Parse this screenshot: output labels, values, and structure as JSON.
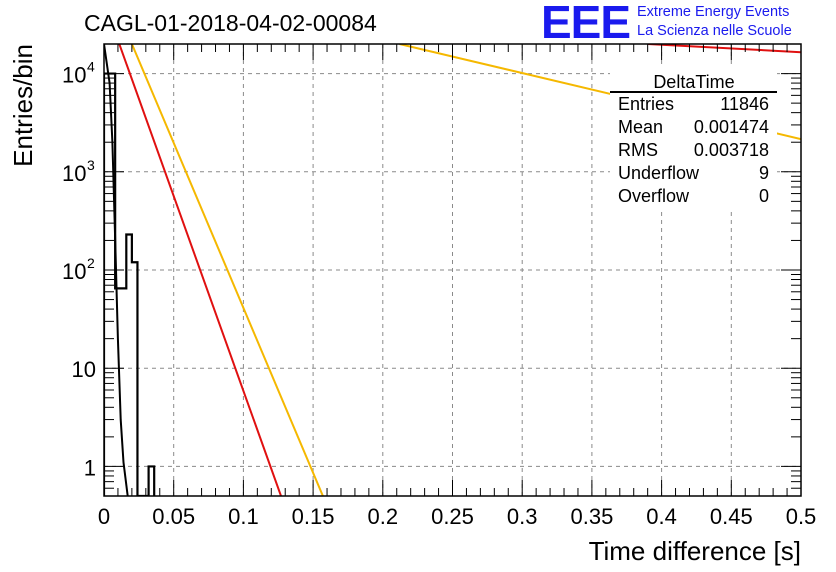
{
  "title": "CAGL-01-2018-04-02-00084",
  "logo": {
    "mark": "EEE",
    "line1": "Extreme Energy Events",
    "line2": "La Scienza nelle Scuole"
  },
  "chart_data": {
    "type": "histogram",
    "xlabel": "Time difference [s]",
    "ylabel": "Entries/bin",
    "xlim": [
      0,
      0.5
    ],
    "ylim": [
      0.5,
      20000
    ],
    "yscale": "log",
    "grid": true,
    "x_ticks": [
      {
        "v": 0,
        "label": "0"
      },
      {
        "v": 0.05,
        "label": "0.05"
      },
      {
        "v": 0.1,
        "label": "0.1"
      },
      {
        "v": 0.15,
        "label": "0.15"
      },
      {
        "v": 0.2,
        "label": "0.2"
      },
      {
        "v": 0.25,
        "label": "0.25"
      },
      {
        "v": 0.3,
        "label": "0.3"
      },
      {
        "v": 0.35,
        "label": "0.35"
      },
      {
        "v": 0.4,
        "label": "0.4"
      },
      {
        "v": 0.45,
        "label": "0.45"
      },
      {
        "v": 0.5,
        "label": "0.5"
      }
    ],
    "y_ticks": [
      {
        "v": 1,
        "base": "1",
        "exp": ""
      },
      {
        "v": 10,
        "base": "10",
        "exp": ""
      },
      {
        "v": 100,
        "base": "10",
        "exp": "2"
      },
      {
        "v": 1000,
        "base": "10",
        "exp": "3"
      },
      {
        "v": 10000,
        "base": "10",
        "exp": "4"
      }
    ],
    "histogram": {
      "bin_width": 0.004,
      "bins": [
        {
          "x0": 0.0,
          "y": 10000
        },
        {
          "x0": 0.004,
          "y": 10000
        },
        {
          "x0": 0.008,
          "y": 65
        },
        {
          "x0": 0.012,
          "y": 65
        },
        {
          "x0": 0.016,
          "y": 230
        },
        {
          "x0": 0.02,
          "y": 120
        },
        {
          "x0": 0.024,
          "y": 0
        },
        {
          "x0": 0.028,
          "y": 0.5
        },
        {
          "x0": 0.032,
          "y": 1
        }
      ]
    },
    "fits": [
      {
        "name": "black",
        "color": "#000000",
        "points": [
          [
            0.0,
            20000
          ],
          [
            0.004,
            8000
          ],
          [
            0.006,
            2000
          ],
          [
            0.008,
            200
          ],
          [
            0.01,
            20
          ],
          [
            0.012,
            3
          ],
          [
            0.014,
            1.1
          ],
          [
            0.017,
            0.5
          ]
        ]
      },
      {
        "name": "red",
        "color": "#e01010",
        "points": [
          [
            0.011,
            20000
          ],
          [
            0.127,
            0.5
          ]
        ]
      },
      {
        "name": "orange",
        "color": "#f5b800",
        "points": [
          [
            0.02,
            20000
          ],
          [
            0.157,
            0.5
          ]
        ]
      },
      {
        "name": "orange-slow",
        "color": "#f5b800",
        "points": [
          [
            0.212,
            20000
          ],
          [
            0.5,
            2150
          ]
        ]
      },
      {
        "name": "red-slow",
        "color": "#e01010",
        "points": [
          [
            0.39,
            20000
          ],
          [
            0.5,
            16500
          ]
        ]
      }
    ]
  },
  "stats": {
    "title": "DeltaTime",
    "rows": [
      {
        "label": "Entries",
        "value": "11846"
      },
      {
        "label": "Mean",
        "value": "0.001474"
      },
      {
        "label": "RMS",
        "value": "0.003718"
      },
      {
        "label": "Underflow",
        "value": "9"
      },
      {
        "label": "Overflow",
        "value": "0"
      }
    ]
  }
}
